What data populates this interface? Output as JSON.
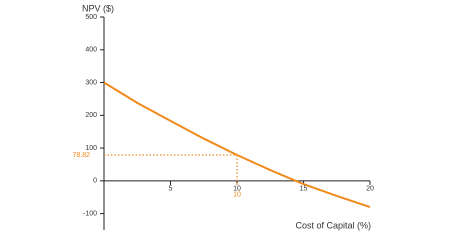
{
  "chart_data": {
    "type": "line",
    "x_label": "Cost of Capital (%)",
    "y_label": "NPV ($)",
    "x": [
      0,
      2.5,
      5,
      7.5,
      10,
      12.5,
      15,
      17.5,
      20
    ],
    "series": [
      {
        "color": "#f08a1c",
        "values": [
          300,
          238,
          183,
          129,
          78.82,
          33,
          -10,
          -46,
          -80
        ]
      }
    ],
    "xlim": [
      0,
      20
    ],
    "xticks": [
      5,
      10,
      15,
      20
    ],
    "ylim": [
      -150,
      500
    ],
    "yticks": [
      -100,
      0,
      100,
      200,
      300,
      400,
      500
    ],
    "annotation": {
      "x": 10,
      "y": 78.82,
      "color": "#f08a1c"
    }
  }
}
